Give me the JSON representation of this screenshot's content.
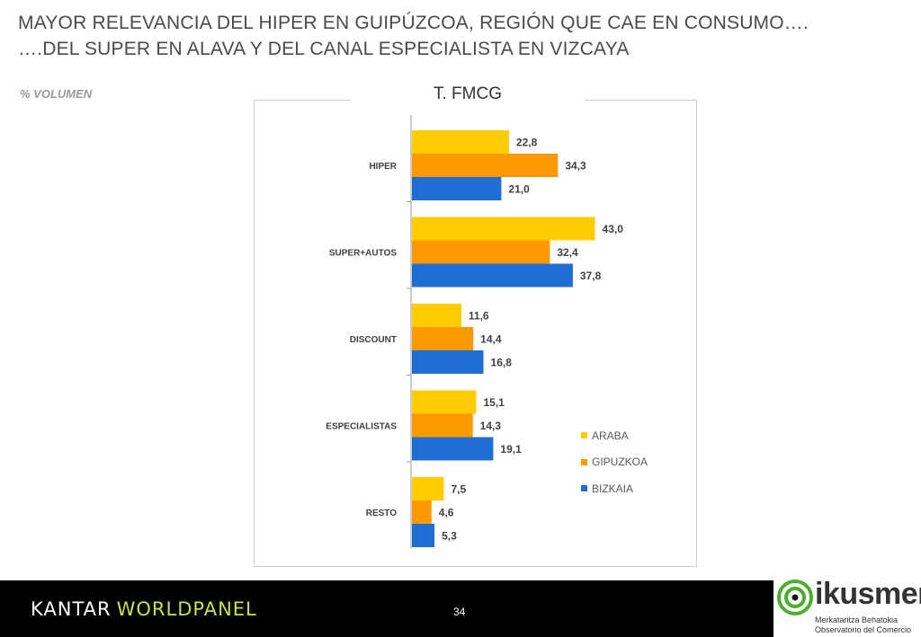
{
  "header": {
    "title_line1": "MAYOR RELEVANCIA DEL HIPER EN GUIPÚZCOA, REGIÓN QUE CAE EN CONSUMO….",
    "title_line2": "….DEL SUPER EN ALAVA Y DEL CANAL ESPECIALISTA  EN VIZCAYA",
    "subtitle": "% VOLUMEN"
  },
  "chart_data": {
    "type": "bar",
    "orientation": "horizontal",
    "title": "T. FMCG",
    "categories": [
      "HIPER",
      "SUPER+AUTOS",
      "DISCOUNT",
      "ESPECIALISTAS",
      "RESTO"
    ],
    "series": [
      {
        "name": "ARABA",
        "color": "#FFCC00",
        "values": [
          22.8,
          43.0,
          11.6,
          15.1,
          7.5
        ],
        "labels": [
          "22,8",
          "43,0",
          "11,6",
          "15,1",
          "7,5"
        ]
      },
      {
        "name": "GIPUZKOA",
        "color": "#FF9900",
        "values": [
          34.3,
          32.4,
          14.4,
          14.3,
          4.6
        ],
        "labels": [
          "34,3",
          "32,4",
          "14,4",
          "14,3",
          "4,6"
        ]
      },
      {
        "name": "BIZKAIA",
        "color": "#1F6ED4",
        "values": [
          21.0,
          37.8,
          16.8,
          19.1,
          5.3
        ],
        "labels": [
          "21,0",
          "37,8",
          "16,8",
          "19,1",
          "5,3"
        ]
      }
    ],
    "xlim": [
      0,
      45
    ],
    "grid": false,
    "legend_position": "bottom-right"
  },
  "footer": {
    "brand_part1": "KANTAR",
    "brand_part2": "WORLDPANEL",
    "page_number": "34"
  },
  "logo": {
    "name": "ikusmer",
    "subtitle_line1": "Merkataritza Behatokia",
    "subtitle_line2": "Observatorio del Comercio",
    "accent_color": "#4CAF2A"
  }
}
